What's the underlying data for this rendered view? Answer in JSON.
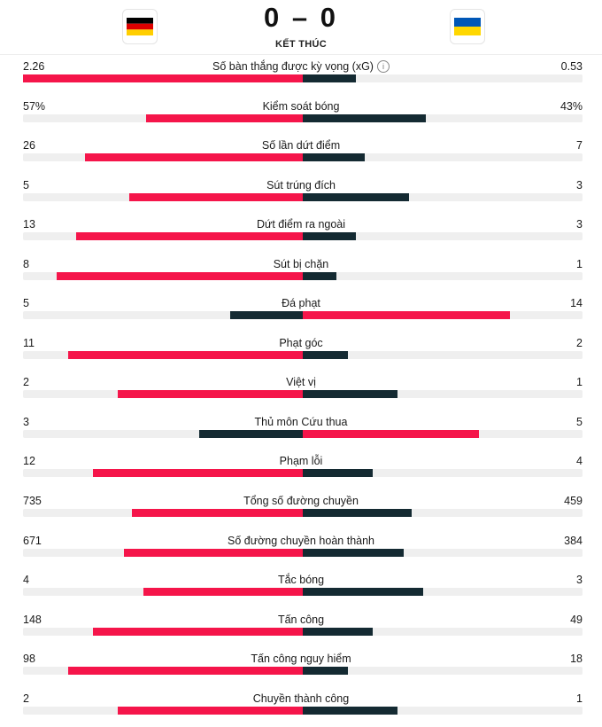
{
  "match": {
    "home_score": "0",
    "away_score": "0",
    "separator": "–",
    "status": "KẾT THÚC",
    "home_flag_icon": "germany-flag-icon",
    "away_flag_icon": "ukraine-flag-icon"
  },
  "colors": {
    "home_bar": "#f5154a",
    "away_bar": "#142a32",
    "track": "#efefef"
  },
  "stats": [
    {
      "label": "Số bàn thắng được kỳ vọng (xG)",
      "home": "2.26",
      "away": "0.53",
      "home_share": 1.0,
      "away_share": 0.19,
      "info": "i"
    },
    {
      "label": "Kiểm soát bóng",
      "home": "57%",
      "away": "43%",
      "home_share": 0.56,
      "away_share": 0.44
    },
    {
      "label": "Số lần dứt điểm",
      "home": "26",
      "away": "7",
      "home_share": 0.78,
      "away_share": 0.22
    },
    {
      "label": "Sút trúng đích",
      "home": "5",
      "away": "3",
      "home_share": 0.62,
      "away_share": 0.38
    },
    {
      "label": "Dứt điểm ra ngoài",
      "home": "13",
      "away": "3",
      "home_share": 0.81,
      "away_share": 0.19
    },
    {
      "label": "Sút bị chặn",
      "home": "8",
      "away": "1",
      "home_share": 0.88,
      "away_share": 0.12
    },
    {
      "label": "Đá phạt",
      "home": "5",
      "away": "14",
      "home_share": 0.26,
      "away_share": 0.74
    },
    {
      "label": "Phạt góc",
      "home": "11",
      "away": "2",
      "home_share": 0.84,
      "away_share": 0.16
    },
    {
      "label": "Việt vị",
      "home": "2",
      "away": "1",
      "home_share": 0.66,
      "away_share": 0.34
    },
    {
      "label": "Thủ môn Cứu thua",
      "home": "3",
      "away": "5",
      "home_share": 0.37,
      "away_share": 0.63
    },
    {
      "label": "Phạm lỗi",
      "home": "12",
      "away": "4",
      "home_share": 0.75,
      "away_share": 0.25
    },
    {
      "label": "Tổng số đường chuyền",
      "home": "735",
      "away": "459",
      "home_share": 0.61,
      "away_share": 0.39
    },
    {
      "label": "Số đường chuyền hoàn thành",
      "home": "671",
      "away": "384",
      "home_share": 0.64,
      "away_share": 0.36
    },
    {
      "label": "Tắc bóng",
      "home": "4",
      "away": "3",
      "home_share": 0.57,
      "away_share": 0.43
    },
    {
      "label": "Tấn công",
      "home": "148",
      "away": "49",
      "home_share": 0.75,
      "away_share": 0.25
    },
    {
      "label": "Tấn công nguy hiểm",
      "home": "98",
      "away": "18",
      "home_share": 0.84,
      "away_share": 0.16
    },
    {
      "label": "Chuyền thành công",
      "home": "2",
      "away": "1",
      "home_share": 0.66,
      "away_share": 0.34
    }
  ]
}
